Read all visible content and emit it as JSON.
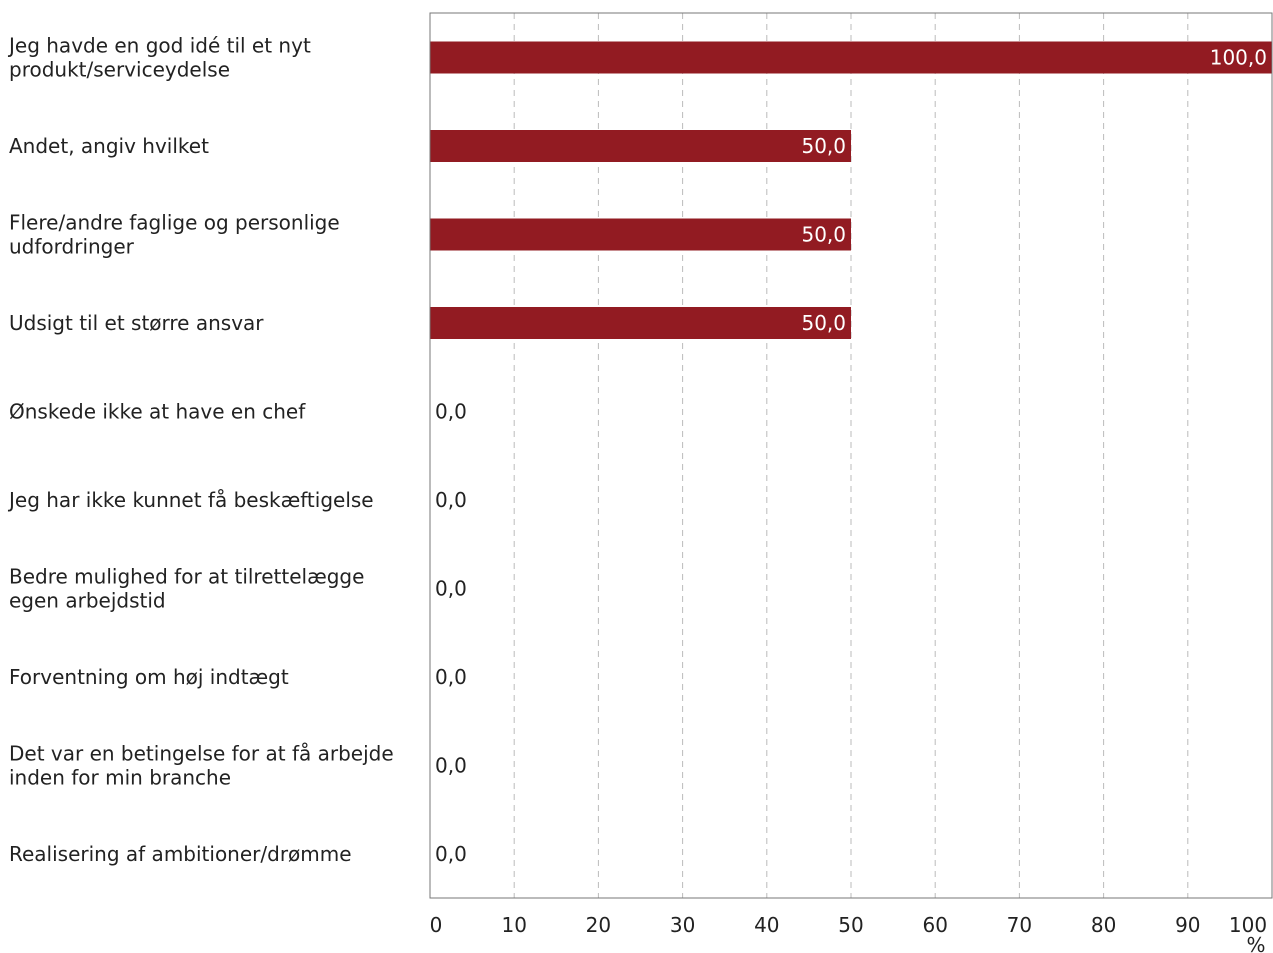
{
  "chart_data": {
    "type": "bar",
    "orientation": "horizontal",
    "categories": [
      [
        "Jeg havde en god idé til et nyt",
        "produkt/serviceydelse"
      ],
      [
        "Andet, angiv hvilket"
      ],
      [
        "Flere/andre faglige og personlige",
        "udfordringer"
      ],
      [
        "Udsigt til et større ansvar"
      ],
      [
        "Ønskede ikke at have en chef"
      ],
      [
        "Jeg har ikke kunnet få beskæftigelse"
      ],
      [
        "Bedre mulighed for at tilrettelægge",
        "egen arbejdstid"
      ],
      [
        "Forventning om høj indtægt"
      ],
      [
        "Det var en betingelse for at få arbejde",
        "inden for min branche"
      ],
      [
        "Realisering af ambitioner/drømme"
      ]
    ],
    "values": [
      100,
      50,
      50,
      50,
      0,
      0,
      0,
      0,
      0,
      0
    ],
    "value_labels": [
      "100,0",
      "50,0",
      "50,0",
      "50,0",
      "0,0",
      "0,0",
      "0,0",
      "0,0",
      "0,0",
      "0,0"
    ],
    "xlim": [
      0,
      100
    ],
    "xticks": [
      "0",
      "10",
      "20",
      "30",
      "40",
      "50",
      "60",
      "70",
      "80",
      "90",
      "100"
    ],
    "xunit": "%",
    "grid": "vertical dashed",
    "bar_color": "#921b22"
  }
}
